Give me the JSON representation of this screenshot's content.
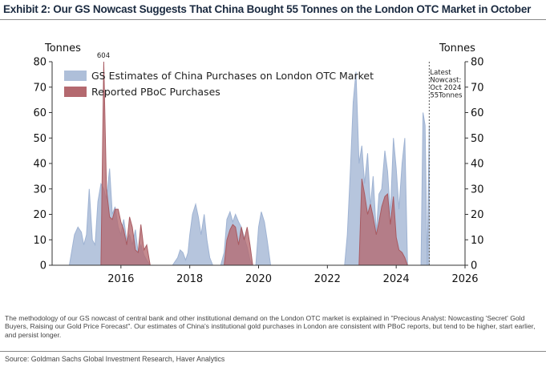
{
  "title": "Exhibit 2: Our GS Nowcast Suggests That China Bought 55 Tonnes on the London OTC Market in October",
  "methodology": "The methodology of our GS nowcast of central bank and other institutional demand on the London OTC market is explained in \"Precious Analyst: Nowcasting 'Secret' Gold Buyers, Raising our Gold Price Forecast\". Our estimates of China's institutional gold purchases in London are consistent with PBoC reports, but tend to be higher, start earlier, and persist longer.",
  "source": "Source: Goldman Sachs Global Investment Research, Haver Analytics",
  "colors": {
    "estimate_fill": "#aebfd9",
    "estimate_stroke": "#9fb3d3",
    "pboc_fill": "#b4696f",
    "pboc_stroke": "#a85a61"
  },
  "chart_data": {
    "type": "area",
    "ylabel_left": "Tonnes",
    "ylabel_right": "Tonnes",
    "ylim": [
      0,
      80
    ],
    "yticks": [
      0,
      10,
      20,
      30,
      40,
      50,
      60,
      70,
      80
    ],
    "xlim": [
      2014.0,
      2026.0
    ],
    "xticks": [
      2016,
      2018,
      2020,
      2022,
      2024,
      2026
    ],
    "xtick_labels": [
      "2016",
      "2018",
      "2020",
      "2022",
      "2024",
      "2026"
    ],
    "peak_label": "604",
    "nowcast_label": [
      "Latest",
      "Nowcast:",
      "Oct 2024",
      "55Tonnes"
    ],
    "series": [
      {
        "name": "GS Estimates of China Purchases on London OTC Market",
        "kind": "estimate",
        "x": [
          2014.5,
          2014.65,
          2014.75,
          2014.85,
          2014.92,
          2015.0,
          2015.08,
          2015.17,
          2015.25,
          2015.33,
          2015.42,
          2015.5,
          2015.58,
          2015.67,
          2015.75,
          2015.83,
          2015.92,
          2016.0,
          2016.08,
          2016.17,
          2016.25,
          2016.33,
          2016.42,
          2016.5,
          2016.58,
          2016.67,
          2016.75,
          2016.85,
          2017.0,
          2017.5,
          2017.65,
          2017.72,
          2017.8,
          2017.88,
          2017.95,
          2018.0,
          2018.08,
          2018.17,
          2018.25,
          2018.33,
          2018.42,
          2018.5,
          2018.58,
          2018.67,
          2018.75,
          2018.9,
          2019.0,
          2019.08,
          2019.17,
          2019.25,
          2019.33,
          2019.42,
          2019.5,
          2019.58,
          2019.67,
          2019.75,
          2019.83,
          2019.92,
          2020.0,
          2020.08,
          2020.17,
          2020.25,
          2020.35,
          2022.5,
          2022.58,
          2022.67,
          2022.75,
          2022.83,
          2022.92,
          2023.0,
          2023.08,
          2023.17,
          2023.25,
          2023.33,
          2023.42,
          2023.5,
          2023.58,
          2023.67,
          2023.75,
          2023.83,
          2023.92,
          2024.0,
          2024.08,
          2024.17,
          2024.25,
          2024.33,
          2024.42,
          2024.5,
          2024.58,
          2024.67,
          2024.72,
          2024.78,
          2024.84,
          2024.9,
          2024.96
        ],
        "y": [
          0,
          12,
          15,
          13,
          8,
          12,
          30,
          10,
          8,
          25,
          32,
          30,
          26,
          38,
          20,
          23,
          15,
          12,
          18,
          10,
          12,
          8,
          14,
          5,
          8,
          4,
          2,
          0,
          0,
          0,
          3,
          6,
          5,
          2,
          5,
          12,
          20,
          24,
          19,
          12,
          20,
          10,
          3,
          0,
          0,
          0,
          5,
          18,
          21,
          17,
          20,
          17,
          15,
          11,
          7,
          2,
          0,
          0,
          15,
          21,
          17,
          10,
          0,
          0,
          12,
          38,
          64,
          76,
          40,
          47,
          32,
          44,
          23,
          35,
          13,
          28,
          30,
          45,
          37,
          20,
          50,
          38,
          22,
          40,
          50,
          0,
          0,
          0,
          0,
          0,
          0,
          60,
          55,
          0,
          55
        ]
      },
      {
        "name": "Reported PBoC Purchases",
        "kind": "pboc",
        "x": [
          2015.42,
          2015.5,
          2015.58,
          2015.67,
          2015.75,
          2015.83,
          2015.92,
          2016.0,
          2016.08,
          2016.17,
          2016.25,
          2016.33,
          2016.42,
          2016.5,
          2016.58,
          2016.67,
          2016.75,
          2016.85,
          2019.0,
          2019.08,
          2019.17,
          2019.25,
          2019.33,
          2019.42,
          2019.5,
          2019.58,
          2019.67,
          2019.75,
          2019.83,
          2022.92,
          2023.0,
          2023.08,
          2023.17,
          2023.25,
          2023.33,
          2023.42,
          2023.5,
          2023.58,
          2023.67,
          2023.75,
          2023.83,
          2023.92,
          2024.0,
          2024.08,
          2024.17,
          2024.25,
          2024.33
        ],
        "y": [
          0,
          80,
          30,
          19,
          18,
          22,
          22,
          17,
          14,
          8,
          19,
          15,
          6,
          5,
          16,
          6,
          8,
          0,
          0,
          10,
          14,
          16,
          15,
          8,
          15,
          10,
          15,
          8,
          0,
          0,
          34,
          28,
          20,
          24,
          19,
          12,
          17,
          23,
          27,
          28,
          16,
          27,
          11,
          6,
          5,
          3,
          0
        ]
      }
    ]
  }
}
